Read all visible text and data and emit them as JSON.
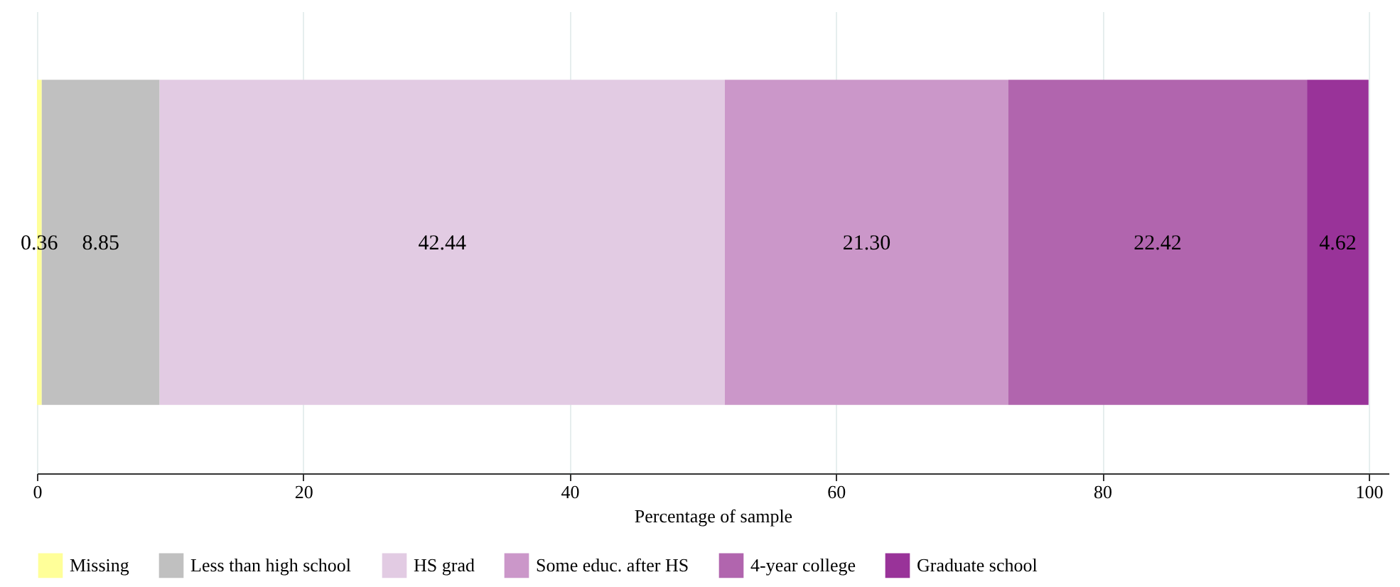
{
  "chart_data": {
    "type": "bar",
    "orientation": "horizontal",
    "stacked": true,
    "categories": [
      null
    ],
    "xlabel": "Percentage of sample",
    "series": [
      {
        "name": "Missing",
        "color": "#ffff99",
        "values": [
          0.36
        ],
        "value_labels": [
          "0.36"
        ]
      },
      {
        "name": "Less than high school",
        "color": "#c0c0c0",
        "values": [
          8.85
        ],
        "value_labels": [
          "8.85"
        ]
      },
      {
        "name": "HS grad",
        "color": "#e2cbe3",
        "values": [
          42.44
        ],
        "value_labels": [
          "42.44"
        ]
      },
      {
        "name": "Some educ. after HS",
        "color": "#cb97c9",
        "values": [
          21.3
        ],
        "value_labels": [
          "21.30"
        ]
      },
      {
        "name": "4-year college",
        "color": "#b165ae",
        "values": [
          22.42
        ],
        "value_labels": [
          "22.42"
        ]
      },
      {
        "name": "Graduate school",
        "color": "#993399",
        "values": [
          4.62
        ],
        "value_labels": [
          "4.62"
        ]
      }
    ],
    "xlim": [
      0,
      101.5
    ],
    "xticks": [
      0,
      20,
      40,
      60,
      80,
      100
    ],
    "grid": "x",
    "legend": "bottom"
  }
}
